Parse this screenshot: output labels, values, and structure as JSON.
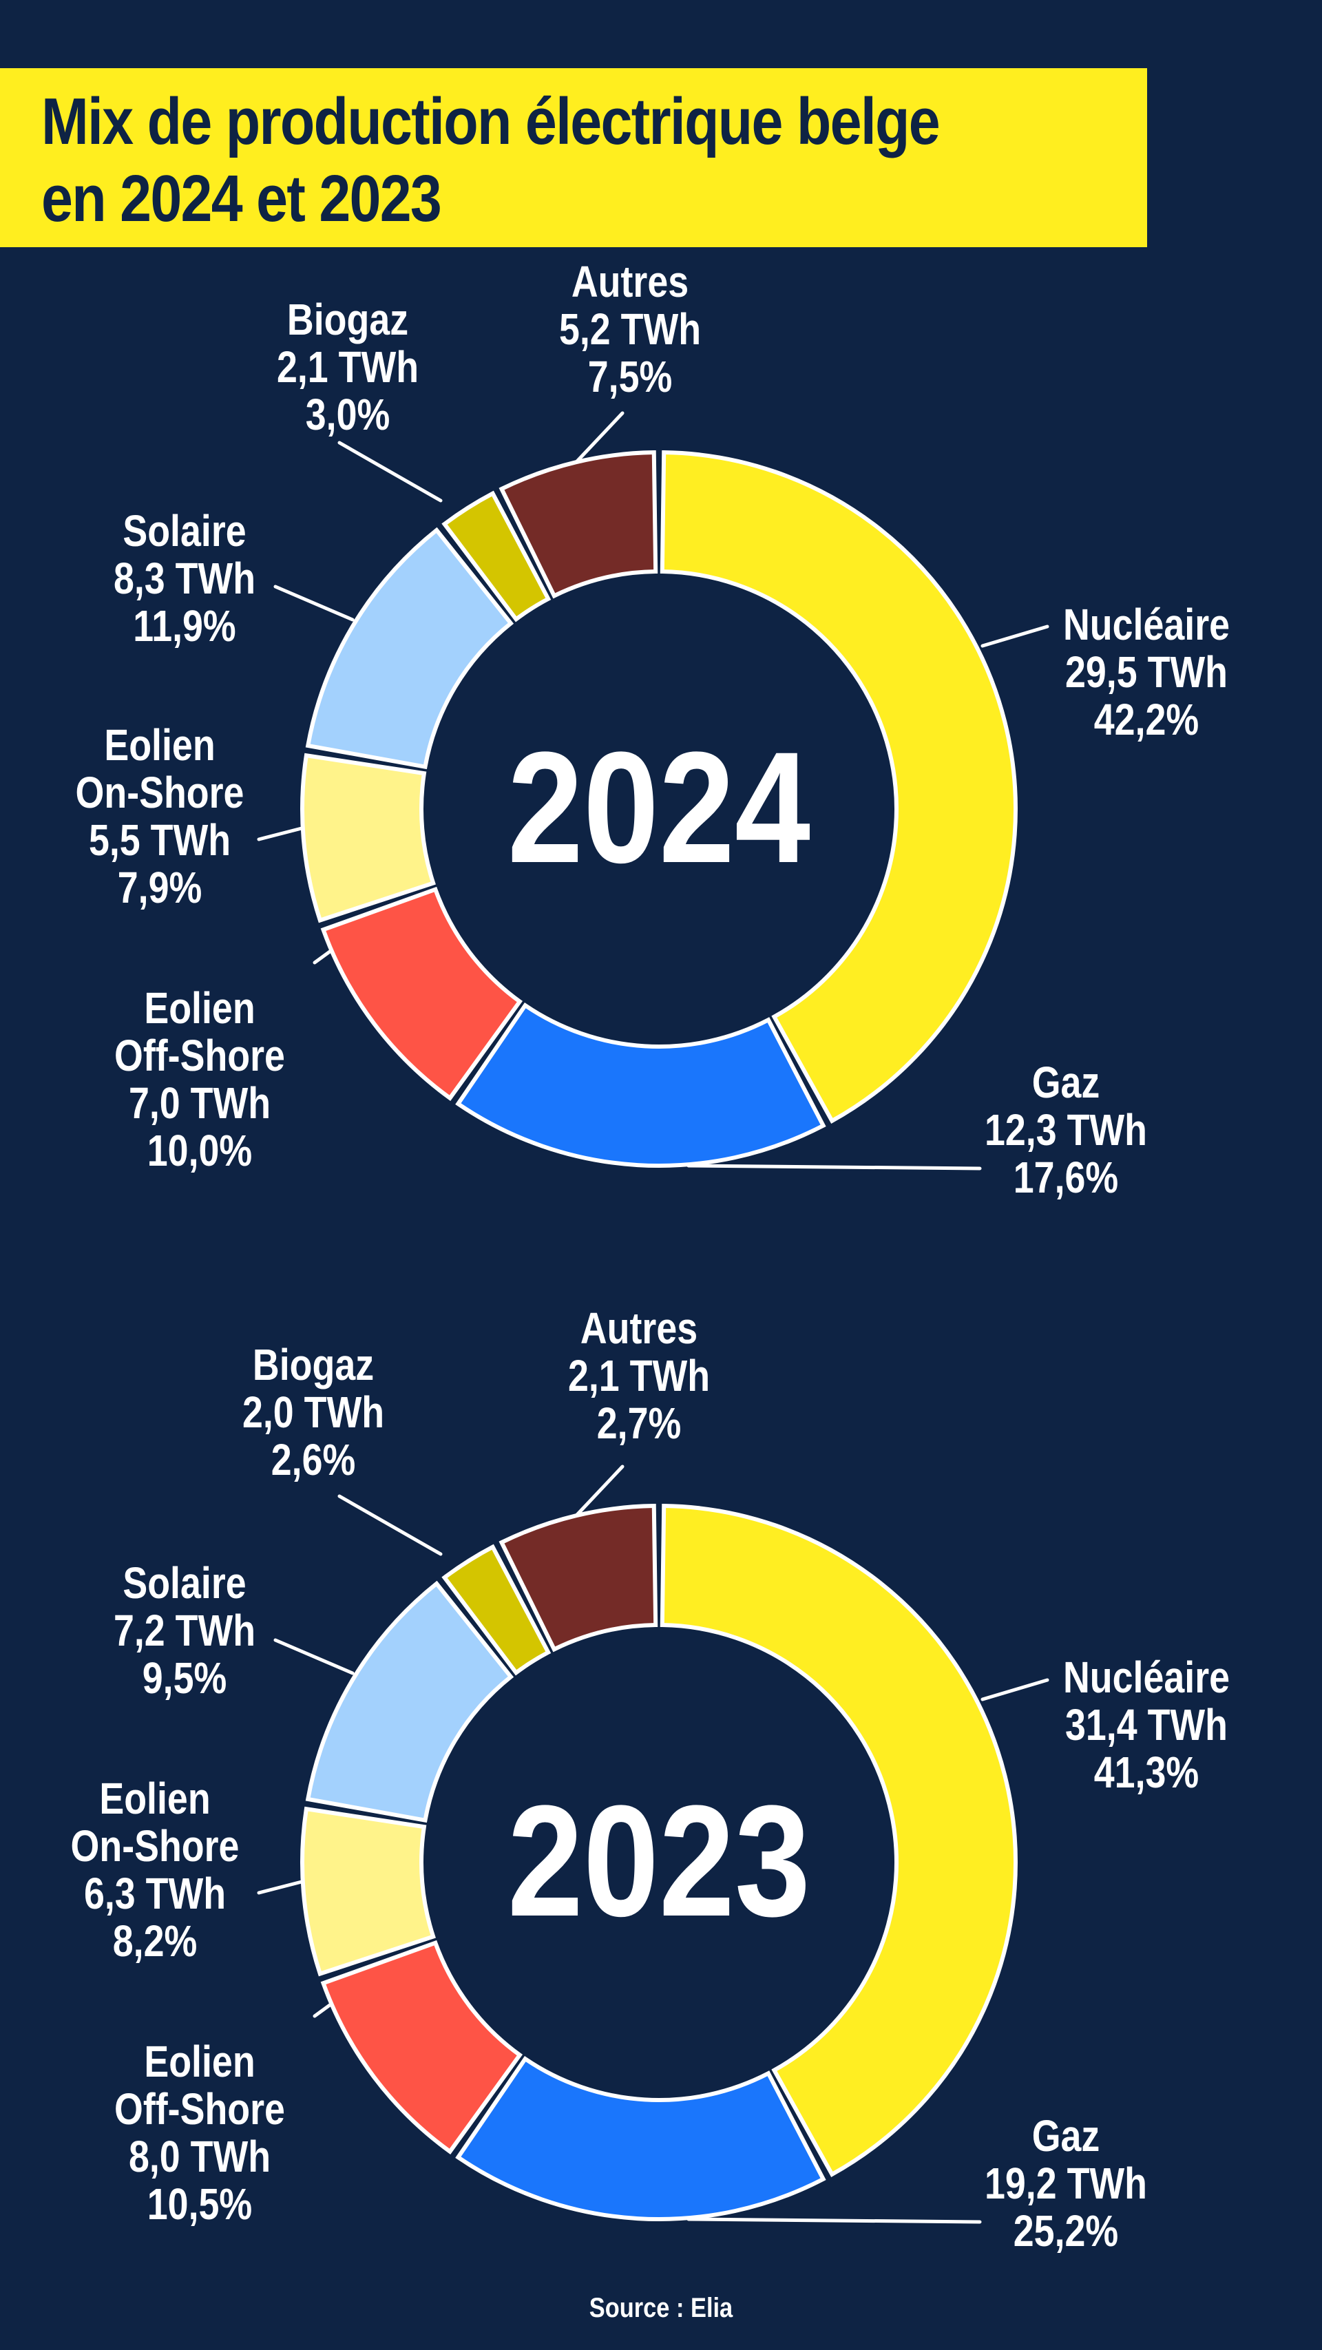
{
  "title": {
    "line1": "Mix de production électrique belge",
    "line2": "en 2024 et 2023"
  },
  "colors": {
    "background": "#0e2344",
    "title_bg": "#ffee1f",
    "nucleaire": "#ffee22",
    "gaz": "#1a76fc",
    "eolien_offshore": "#fe5446",
    "eolien_onshore": "#fff38a",
    "solaire": "#a3d1fd",
    "biogaz": "#d4c500",
    "autres": "#742b27",
    "slice_outline": "#ffffff"
  },
  "source": "Source : Elia",
  "charts": [
    {
      "year": "2024",
      "slices": [
        {
          "key": "nucleaire",
          "name": "Nucléaire",
          "value": "29,5 TWh",
          "pct": "42,2%"
        },
        {
          "key": "gaz",
          "name": "Gaz",
          "value": "12,3 TWh",
          "pct": "17,6%"
        },
        {
          "key": "eolien_offshore",
          "name_line1": "Eolien",
          "name_line2": "Off-Shore",
          "value": "7,0 TWh",
          "pct": "10,0%"
        },
        {
          "key": "eolien_onshore",
          "name_line1": "Eolien",
          "name_line2": "On-Shore",
          "value": "5,5 TWh",
          "pct": "7,9%"
        },
        {
          "key": "solaire",
          "name": "Solaire",
          "value": "8,3 TWh",
          "pct": "11,9%"
        },
        {
          "key": "biogaz",
          "name": "Biogaz",
          "value": "2,1 TWh",
          "pct": "3,0%"
        },
        {
          "key": "autres",
          "name": "Autres",
          "value": "5,2 TWh",
          "pct": "7,5%"
        }
      ]
    },
    {
      "year": "2023",
      "slices": [
        {
          "key": "nucleaire",
          "name": "Nucléaire",
          "value": "31,4 TWh",
          "pct": "41,3%"
        },
        {
          "key": "gaz",
          "name": "Gaz",
          "value": "19,2 TWh",
          "pct": "25,2%"
        },
        {
          "key": "eolien_offshore",
          "name_line1": "Eolien",
          "name_line2": "Off-Shore",
          "value": "8,0 TWh",
          "pct": "10,5%"
        },
        {
          "key": "eolien_onshore",
          "name_line1": "Eolien",
          "name_line2": "On-Shore",
          "value": "6,3 TWh",
          "pct": "8,2%"
        },
        {
          "key": "solaire",
          "name": "Solaire",
          "value": "7,2 TWh",
          "pct": "9,5%"
        },
        {
          "key": "biogaz",
          "name": "Biogaz",
          "value": "2,0 TWh",
          "pct": "2,6%"
        },
        {
          "key": "autres",
          "name": "Autres",
          "value": "2,1 TWh",
          "pct": "2,7%"
        }
      ]
    }
  ],
  "chart_data": [
    {
      "type": "pie",
      "title": "Mix de production électrique belge en 2024",
      "center_label": "2024",
      "unit": "TWh",
      "categories": [
        "Nucléaire",
        "Gaz",
        "Eolien Off-Shore",
        "Eolien On-Shore",
        "Solaire",
        "Biogaz",
        "Autres"
      ],
      "values": [
        29.5,
        12.3,
        7.0,
        5.5,
        8.3,
        2.1,
        5.2
      ],
      "percentages": [
        42.2,
        17.6,
        10.0,
        7.9,
        11.9,
        3.0,
        7.5
      ],
      "colors": [
        "#ffee22",
        "#1a76fc",
        "#fe5446",
        "#fff38a",
        "#a3d1fd",
        "#d4c500",
        "#742b27"
      ],
      "donut": true,
      "source": "Elia"
    },
    {
      "type": "pie",
      "title": "Mix de production électrique belge en 2023",
      "center_label": "2023",
      "unit": "TWh",
      "categories": [
        "Nucléaire",
        "Gaz",
        "Eolien Off-Shore",
        "Eolien On-Shore",
        "Solaire",
        "Biogaz",
        "Autres"
      ],
      "values": [
        31.4,
        19.2,
        8.0,
        6.3,
        7.2,
        2.0,
        2.1
      ],
      "percentages": [
        41.3,
        25.2,
        10.5,
        8.2,
        9.5,
        2.6,
        2.7
      ],
      "colors": [
        "#ffee22",
        "#1a76fc",
        "#fe5446",
        "#fff38a",
        "#a3d1fd",
        "#d4c500",
        "#742b27"
      ],
      "donut": true,
      "source": "Elia"
    }
  ]
}
